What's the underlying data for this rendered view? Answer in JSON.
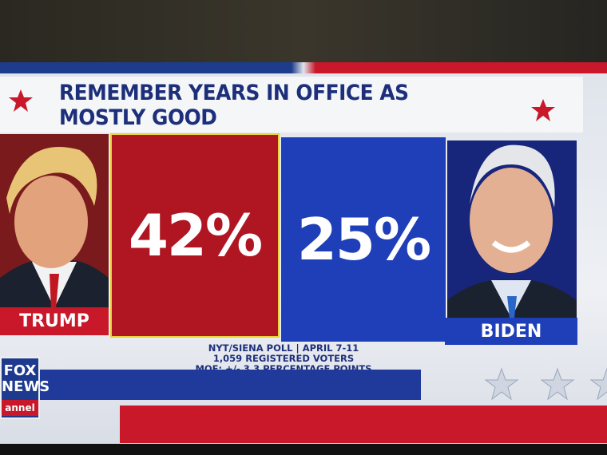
{
  "graphic": {
    "title": "REMEMBER YEARS IN OFFICE AS MOSTLY GOOD",
    "candidates": [
      {
        "name": "TRUMP",
        "result": "42%"
      },
      {
        "name": "BIDEN",
        "result": "25%"
      }
    ],
    "source": [
      "NYT/SIENA POLL | APRIL 7-11",
      "1,059 REGISTERED VOTERS",
      "MOE: +/- 3.3 PERCENTAGE POINTS"
    ],
    "logo": [
      "FOX",
      "NEWS",
      "annel"
    ]
  }
}
